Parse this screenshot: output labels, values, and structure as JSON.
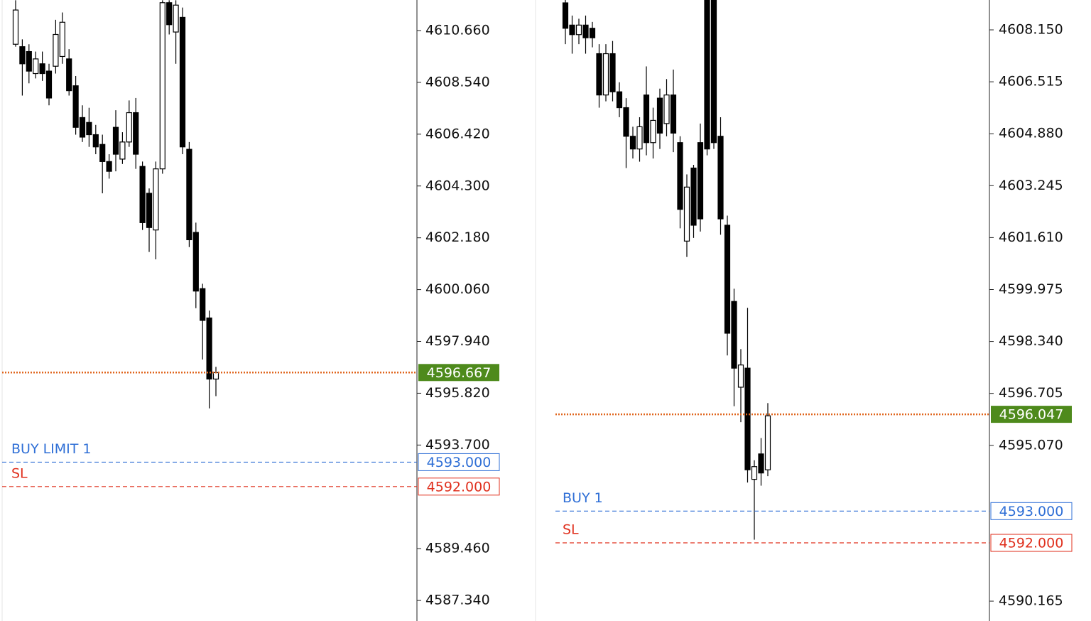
{
  "chart_data": [
    {
      "type": "candlestick",
      "open": [
        4610.1,
        4610.0,
        4609.8,
        4608.9,
        4609.3,
        4609.0,
        4609.2,
        4609.6,
        4609.5,
        4608.4,
        4607.1,
        4606.9,
        4606.4,
        4606.0,
        4605.3,
        4606.7,
        4605.4,
        4606.1,
        4607.3,
        4605.1,
        4604.0,
        4602.5,
        4605.0,
        4611.8,
        4610.6,
        4611.2,
        4605.8,
        4602.4,
        4600.1,
        4598.9,
        4596.4
      ],
      "high": [
        4611.9,
        4610.3,
        4610.1,
        4609.8,
        4609.8,
        4609.3,
        4611.1,
        4611.4,
        4609.9,
        4608.8,
        4607.6,
        4607.5,
        4606.8,
        4606.4,
        4605.6,
        4607.4,
        4606.5,
        4607.8,
        4607.9,
        4605.3,
        4604.2,
        4605.3,
        4611.9,
        4611.9,
        4611.9,
        4611.6,
        4606.1,
        4602.8,
        4600.3,
        4599.2,
        4596.9
      ],
      "low": [
        4610.0,
        4608.0,
        4608.5,
        4608.7,
        4608.6,
        4607.6,
        4608.9,
        4609.3,
        4608.0,
        4606.4,
        4606.1,
        4605.9,
        4605.6,
        4604.0,
        4604.6,
        4604.9,
        4605.2,
        4605.9,
        4605.0,
        4602.5,
        4601.6,
        4601.3,
        4604.8,
        4610.5,
        4609.3,
        4605.6,
        4601.8,
        4599.3,
        4597.2,
        4595.2,
        4595.7
      ],
      "close": [
        4611.5,
        4609.3,
        4609.0,
        4609.5,
        4608.9,
        4607.9,
        4610.5,
        4611.0,
        4608.2,
        4606.7,
        4606.3,
        4606.4,
        4605.9,
        4605.3,
        4604.9,
        4605.6,
        4606.1,
        4607.3,
        4605.6,
        4602.8,
        4602.6,
        4605.0,
        4611.8,
        4610.9,
        4611.7,
        4605.9,
        4602.1,
        4600.0,
        4598.8,
        4596.4,
        4596.667
      ],
      "up_color": "#ffffff",
      "down_color": "#000000",
      "ylim": [
        4586.5,
        4611.91
      ],
      "yticks": [
        {
          "value": 4610.66,
          "label": "4610.660"
        },
        {
          "value": 4608.54,
          "label": "4608.540"
        },
        {
          "value": 4606.42,
          "label": "4606.420"
        },
        {
          "value": 4604.3,
          "label": "4604.300"
        },
        {
          "value": 4602.18,
          "label": "4602.180"
        },
        {
          "value": 4600.06,
          "label": "4600.060"
        },
        {
          "value": 4597.94,
          "label": "4597.940"
        },
        {
          "value": 4595.82,
          "label": "4595.820"
        },
        {
          "value": 4593.7,
          "label": "4593.700"
        },
        {
          "value": 4589.46,
          "label": "4589.460"
        },
        {
          "value": 4587.34,
          "label": "4587.340"
        }
      ],
      "current_price": {
        "value": 4596.667,
        "color": "#4e8a1c"
      },
      "levels": [
        {
          "name": "BUY LIMIT 1",
          "value": 4593,
          "label": "4593.000",
          "color": "#2f6fd6"
        },
        {
          "name": "SL",
          "value": 4592,
          "label": "4592.000",
          "color": "#e0301e"
        }
      ]
    },
    {
      "type": "candlestick",
      "open": [
        4609.0,
        4608.3,
        4608.0,
        4608.3,
        4608.2,
        4607.4,
        4606.1,
        4607.4,
        4606.2,
        4605.7,
        4604.8,
        4604.4,
        4606.1,
        4604.6,
        4606.0,
        4605.2,
        4606.1,
        4604.6,
        4601.5,
        4603.8,
        4604.6,
        4609.1,
        4609.1,
        4604.8,
        4602.0,
        4599.6,
        4596.9,
        4597.5,
        4594.0,
        4594.8,
        4594.3
      ],
      "high": [
        4609.1,
        4608.6,
        4608.5,
        4608.6,
        4608.4,
        4607.7,
        4607.7,
        4607.8,
        4606.5,
        4606.0,
        4605.1,
        4605.4,
        4607.0,
        4605.7,
        4606.3,
        4606.6,
        4606.9,
        4604.8,
        4603.6,
        4603.9,
        4605.2,
        4609.1,
        4609.1,
        4605.4,
        4602.3,
        4600.0,
        4598.1,
        4599.4,
        4594.6,
        4595.3,
        4596.4
      ],
      "low": [
        4607.7,
        4607.4,
        4607.7,
        4607.4,
        4607.6,
        4605.7,
        4605.9,
        4605.9,
        4605.4,
        4603.8,
        4604.1,
        4604.0,
        4604.2,
        4604.1,
        4604.4,
        4604.8,
        4604.3,
        4601.9,
        4601.0,
        4601.6,
        4601.8,
        4604.2,
        4604.4,
        4601.7,
        4597.9,
        4596.3,
        4595.8,
        4593.9,
        4592.1,
        4593.8,
        4594.1
      ],
      "close": [
        4608.2,
        4608.0,
        4608.3,
        4607.9,
        4607.9,
        4606.1,
        4607.4,
        4606.2,
        4605.7,
        4604.8,
        4604.4,
        4605.1,
        4604.6,
        4605.3,
        4604.9,
        4606.1,
        4604.9,
        4602.5,
        4603.2,
        4602.0,
        4602.2,
        4604.4,
        4604.6,
        4602.2,
        4598.6,
        4597.5,
        4597.6,
        4594.3,
        4594.4,
        4594.2,
        4596.0
      ],
      "up_color": "#ffffff",
      "down_color": "#000000",
      "ylim": [
        4589.54,
        4609.09
      ],
      "yticks": [
        {
          "value": 4608.15,
          "label": "4608.150"
        },
        4606.515,
        {
          "value": 4604.88,
          "label": "4604.880"
        },
        4603.245,
        {
          "value": 4601.61,
          "label": "4601.610"
        },
        4599.975,
        {
          "value": 4598.34,
          "label": "4598.340"
        },
        4596.705,
        {
          "value": 4595.07,
          "label": "4595.070"
        },
        4590.165
      ],
      "current_price": {
        "value": 4596.047,
        "color": "#4e8a1c"
      },
      "levels": [
        {
          "name": "BUY 1",
          "value": 4593,
          "label": "4593.000",
          "color": "#2f6fd6"
        },
        {
          "name": "SL",
          "value": 4592,
          "label": "4592.000",
          "color": "#e0301e"
        }
      ]
    }
  ]
}
